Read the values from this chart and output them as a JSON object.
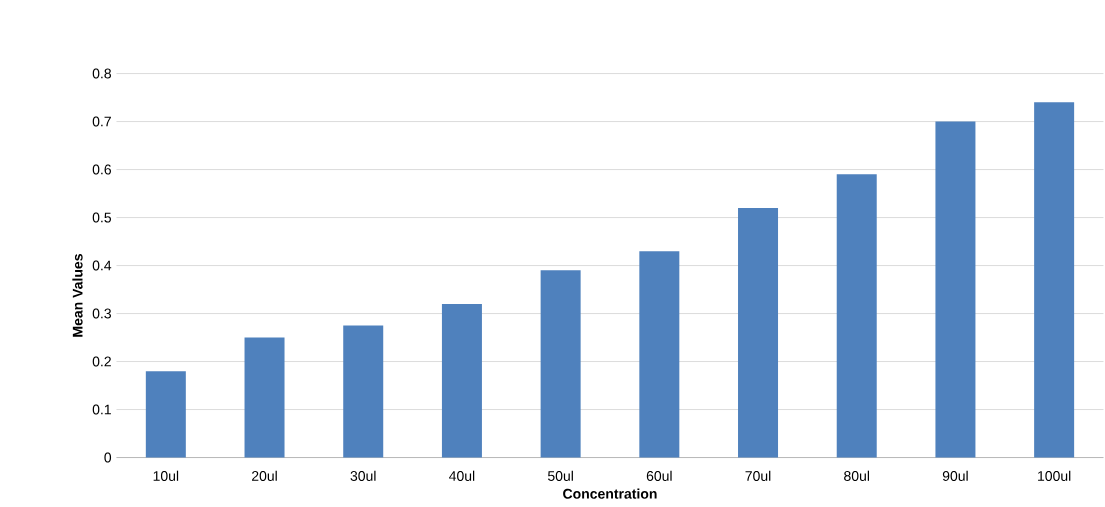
{
  "chart_data": {
    "type": "bar",
    "xlabel": "Concentration",
    "ylabel": "Mean Values",
    "categories": [
      "10ul",
      "20ul",
      "30ul",
      "40ul",
      "50ul",
      "60ul",
      "70ul",
      "80ul",
      "90ul",
      "100ul"
    ],
    "values": [
      0.18,
      0.25,
      0.275,
      0.32,
      0.39,
      0.43,
      0.52,
      0.59,
      0.7,
      0.74
    ],
    "color": "#4f81bd",
    "ylim": [
      0,
      0.8
    ],
    "yticks": [
      0,
      0.1,
      0.2,
      0.3,
      0.4,
      0.5,
      0.6,
      0.7,
      0.8
    ],
    "grid": "y"
  }
}
